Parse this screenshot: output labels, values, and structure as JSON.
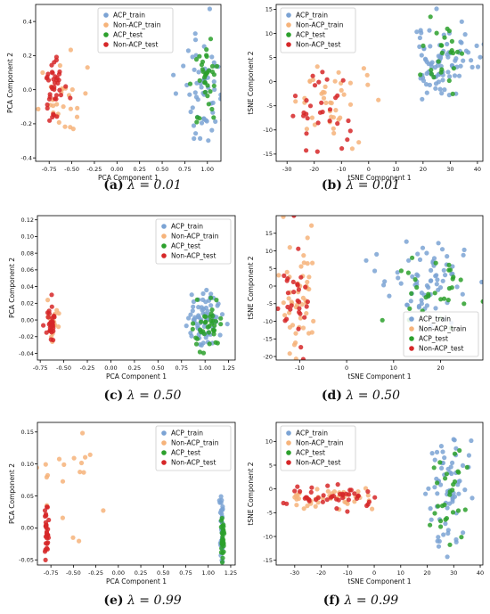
{
  "legend_labels": [
    "ACP_train",
    "Non-ACP_train",
    "ACP_test",
    "Non-ACP_test"
  ],
  "colors": {
    "ACP_train": "#7ba3d4",
    "Non-ACP_train": "#f6b37a",
    "ACP_test": "#2ca02c",
    "Non-ACP_test": "#d62728"
  },
  "chart_data": [
    {
      "type": "scatter",
      "id": "a",
      "caption_label": "(a)",
      "caption_text": "λ = 0.01",
      "xlabel": "PCA Component 1",
      "ylabel": "PCA Component 2",
      "xlim": [
        -0.9,
        1.15
      ],
      "ylim": [
        -0.42,
        0.5
      ],
      "xticks": [
        "-0.75",
        "-0.50",
        "-0.25",
        "0.00",
        "0.25",
        "0.50",
        "0.75",
        "1.00"
      ],
      "xtick_values": [
        -0.75,
        -0.5,
        -0.25,
        0,
        0.25,
        0.5,
        0.75,
        1.0
      ],
      "yticks": [
        "-0.4",
        "-0.2",
        "0.0",
        "0.2",
        "0.4"
      ],
      "ytick_values": [
        -0.4,
        -0.2,
        0,
        0.2,
        0.4
      ],
      "legend_loc": "upper center",
      "clusters": [
        {
          "series": "Non-ACP_train",
          "cx": -0.6,
          "cy": -0.05,
          "sx": 0.12,
          "sy": 0.12,
          "n": 28,
          "seed": 11
        },
        {
          "series": "Non-ACP_test",
          "cx": -0.7,
          "cy": 0.0,
          "sx": 0.06,
          "sy": 0.1,
          "n": 40,
          "seed": 12
        },
        {
          "series": "ACP_train",
          "cx": 0.92,
          "cy": 0.0,
          "sx": 0.12,
          "sy": 0.14,
          "n": 60,
          "seed": 13
        },
        {
          "series": "ACP_test",
          "cx": 0.98,
          "cy": 0.08,
          "sx": 0.06,
          "sy": 0.12,
          "n": 35,
          "seed": 14
        }
      ]
    },
    {
      "type": "scatter",
      "id": "b",
      "caption_label": "(b)",
      "caption_text": "λ = 0.01",
      "xlabel": "tSNE Component 1",
      "ylabel": "tSNE Component 2",
      "xlim": [
        -34,
        42
      ],
      "ylim": [
        -16.5,
        16
      ],
      "xticks": [
        "-30",
        "-20",
        "-10",
        "0",
        "10",
        "20",
        "30",
        "40"
      ],
      "xtick_values": [
        -30,
        -20,
        -10,
        0,
        10,
        20,
        30,
        40
      ],
      "yticks": [
        "-15",
        "-10",
        "-5",
        "0",
        "5",
        "10",
        "15"
      ],
      "ytick_values": [
        -15,
        -10,
        -5,
        0,
        5,
        10,
        15
      ],
      "legend_loc": "upper left",
      "clusters": [
        {
          "series": "Non-ACP_train",
          "cx": -14,
          "cy": -4,
          "sx": 7,
          "sy": 3.5,
          "n": 40,
          "seed": 21
        },
        {
          "series": "Non-ACP_test",
          "cx": -19,
          "cy": -7,
          "sx": 6,
          "sy": 4,
          "n": 30,
          "seed": 22
        },
        {
          "series": "ACP_train",
          "cx": 28,
          "cy": 5,
          "sx": 6,
          "sy": 4,
          "n": 90,
          "seed": 23
        },
        {
          "series": "ACP_test",
          "cx": 28,
          "cy": 6,
          "sx": 5,
          "sy": 4,
          "n": 25,
          "seed": 24
        }
      ]
    },
    {
      "type": "scatter",
      "id": "c",
      "caption_label": "(c)",
      "caption_text": "λ = 0.50",
      "xlabel": "PCA Component 1",
      "ylabel": "PCA Component 2",
      "xlim": [
        -0.78,
        1.32
      ],
      "ylim": [
        -0.048,
        0.125
      ],
      "xticks": [
        "-0.75",
        "-0.50",
        "-0.25",
        "0.00",
        "0.25",
        "0.50",
        "0.75",
        "1.00",
        "1.25"
      ],
      "xtick_values": [
        -0.75,
        -0.5,
        -0.25,
        0,
        0.25,
        0.5,
        0.75,
        1.0,
        1.25
      ],
      "yticks": [
        "-0.04",
        "-0.02",
        "0.00",
        "0.02",
        "0.04",
        "0.06",
        "0.08",
        "0.10",
        "0.12"
      ],
      "ytick_values": [
        -0.04,
        -0.02,
        0,
        0.02,
        0.04,
        0.06,
        0.08,
        0.1,
        0.12
      ],
      "legend_loc": "upper right",
      "clusters": [
        {
          "series": "Non-ACP_train",
          "cx": -0.62,
          "cy": -0.005,
          "sx": 0.04,
          "sy": 0.012,
          "n": 20,
          "seed": 31
        },
        {
          "series": "Non-ACP_test",
          "cx": -0.63,
          "cy": -0.003,
          "sx": 0.02,
          "sy": 0.01,
          "n": 30,
          "seed": 32
        },
        {
          "series": "ACP_train",
          "cx": 0.98,
          "cy": 0.0,
          "sx": 0.1,
          "sy": 0.018,
          "n": 70,
          "seed": 33
        },
        {
          "series": "ACP_test",
          "cx": 1.05,
          "cy": -0.01,
          "sx": 0.08,
          "sy": 0.014,
          "n": 40,
          "seed": 34
        }
      ]
    },
    {
      "type": "scatter",
      "id": "d",
      "caption_label": "(d)",
      "caption_text": "λ = 0.50",
      "xlabel": "tSNE Component 1",
      "ylabel": "tSNE Component 2",
      "xlim": [
        -15,
        29
      ],
      "ylim": [
        -21,
        20
      ],
      "xticks": [
        "-10",
        "0",
        "10",
        "20"
      ],
      "xtick_values": [
        -10,
        0,
        10,
        20
      ],
      "yticks": [
        "-20",
        "-15",
        "-10",
        "-5",
        "0",
        "5",
        "10",
        "15"
      ],
      "ytick_values": [
        -20,
        -15,
        -10,
        -5,
        0,
        5,
        10,
        15
      ],
      "legend_loc": "lower right",
      "clusters": [
        {
          "series": "Non-ACP_train",
          "cx": -10,
          "cy": -1,
          "sx": 2,
          "sy": 10,
          "n": 50,
          "seed": 41
        },
        {
          "series": "Non-ACP_test",
          "cx": -11,
          "cy": -1,
          "sx": 1.5,
          "sy": 8,
          "n": 30,
          "seed": 42
        },
        {
          "series": "ACP_train",
          "cx": 17,
          "cy": 1,
          "sx": 5,
          "sy": 5,
          "n": 70,
          "seed": 43
        },
        {
          "series": "ACP_test",
          "cx": 19,
          "cy": -1,
          "sx": 5,
          "sy": 5,
          "n": 30,
          "seed": 44
        }
      ]
    },
    {
      "type": "scatter",
      "id": "e",
      "caption_label": "(e)",
      "caption_text": "λ = 0.99",
      "xlabel": "PCA Component 1",
      "ylabel": "PCA Component 2",
      "xlim": [
        -0.9,
        1.3
      ],
      "ylim": [
        -0.058,
        0.165
      ],
      "xticks": [
        "-0.75",
        "-0.50",
        "-0.25",
        "0.00",
        "0.25",
        "0.50",
        "0.75",
        "1.00",
        "1.25"
      ],
      "xtick_values": [
        -0.75,
        -0.5,
        -0.25,
        0,
        0.25,
        0.5,
        0.75,
        1.0,
        1.25
      ],
      "yticks": [
        "-0.05",
        "0.00",
        "0.05",
        "0.10",
        "0.15"
      ],
      "ytick_values": [
        -0.05,
        0,
        0.05,
        0.1,
        0.15
      ],
      "legend_loc": "upper right",
      "clusters": [
        {
          "series": "Non-ACP_train",
          "cx": -0.6,
          "cy": 0.05,
          "sx": 0.2,
          "sy": 0.05,
          "n": 20,
          "seed": 51
        },
        {
          "series": "Non-ACP_test",
          "cx": -0.8,
          "cy": -0.01,
          "sx": 0.01,
          "sy": 0.02,
          "n": 35,
          "seed": 52
        },
        {
          "series": "ACP_train",
          "cx": 1.15,
          "cy": 0.0,
          "sx": 0.01,
          "sy": 0.025,
          "n": 30,
          "seed": 53
        },
        {
          "series": "ACP_test",
          "cx": 1.16,
          "cy": -0.01,
          "sx": 0.01,
          "sy": 0.02,
          "n": 30,
          "seed": 54
        }
      ]
    },
    {
      "type": "scatter",
      "id": "f",
      "caption_label": "(f)",
      "caption_text": "λ = 0.99",
      "xlabel": "tSNE Component 1",
      "ylabel": "tSNE Component 2",
      "xlim": [
        -37,
        41
      ],
      "ylim": [
        -16,
        14
      ],
      "xticks": [
        "-30",
        "-20",
        "-10",
        "0",
        "10",
        "20",
        "30",
        "40"
      ],
      "xtick_values": [
        -30,
        -20,
        -10,
        0,
        10,
        20,
        30,
        40
      ],
      "yticks": [
        "-15",
        "-10",
        "-5",
        "0",
        "5",
        "10"
      ],
      "ytick_values": [
        -15,
        -10,
        -5,
        0,
        5,
        10
      ],
      "legend_loc": "upper left",
      "clusters": [
        {
          "series": "Non-ACP_train",
          "cx": -15,
          "cy": -2,
          "sx": 10,
          "sy": 1.2,
          "n": 40,
          "seed": 61
        },
        {
          "series": "Non-ACP_test",
          "cx": -17,
          "cy": -2,
          "sx": 9,
          "sy": 1.2,
          "n": 45,
          "seed": 62
        },
        {
          "series": "ACP_train",
          "cx": 27,
          "cy": 0,
          "sx": 4,
          "sy": 7,
          "n": 70,
          "seed": 63
        },
        {
          "series": "ACP_test",
          "cx": 28,
          "cy": 0,
          "sx": 3,
          "sy": 6,
          "n": 30,
          "seed": 64
        }
      ]
    }
  ]
}
